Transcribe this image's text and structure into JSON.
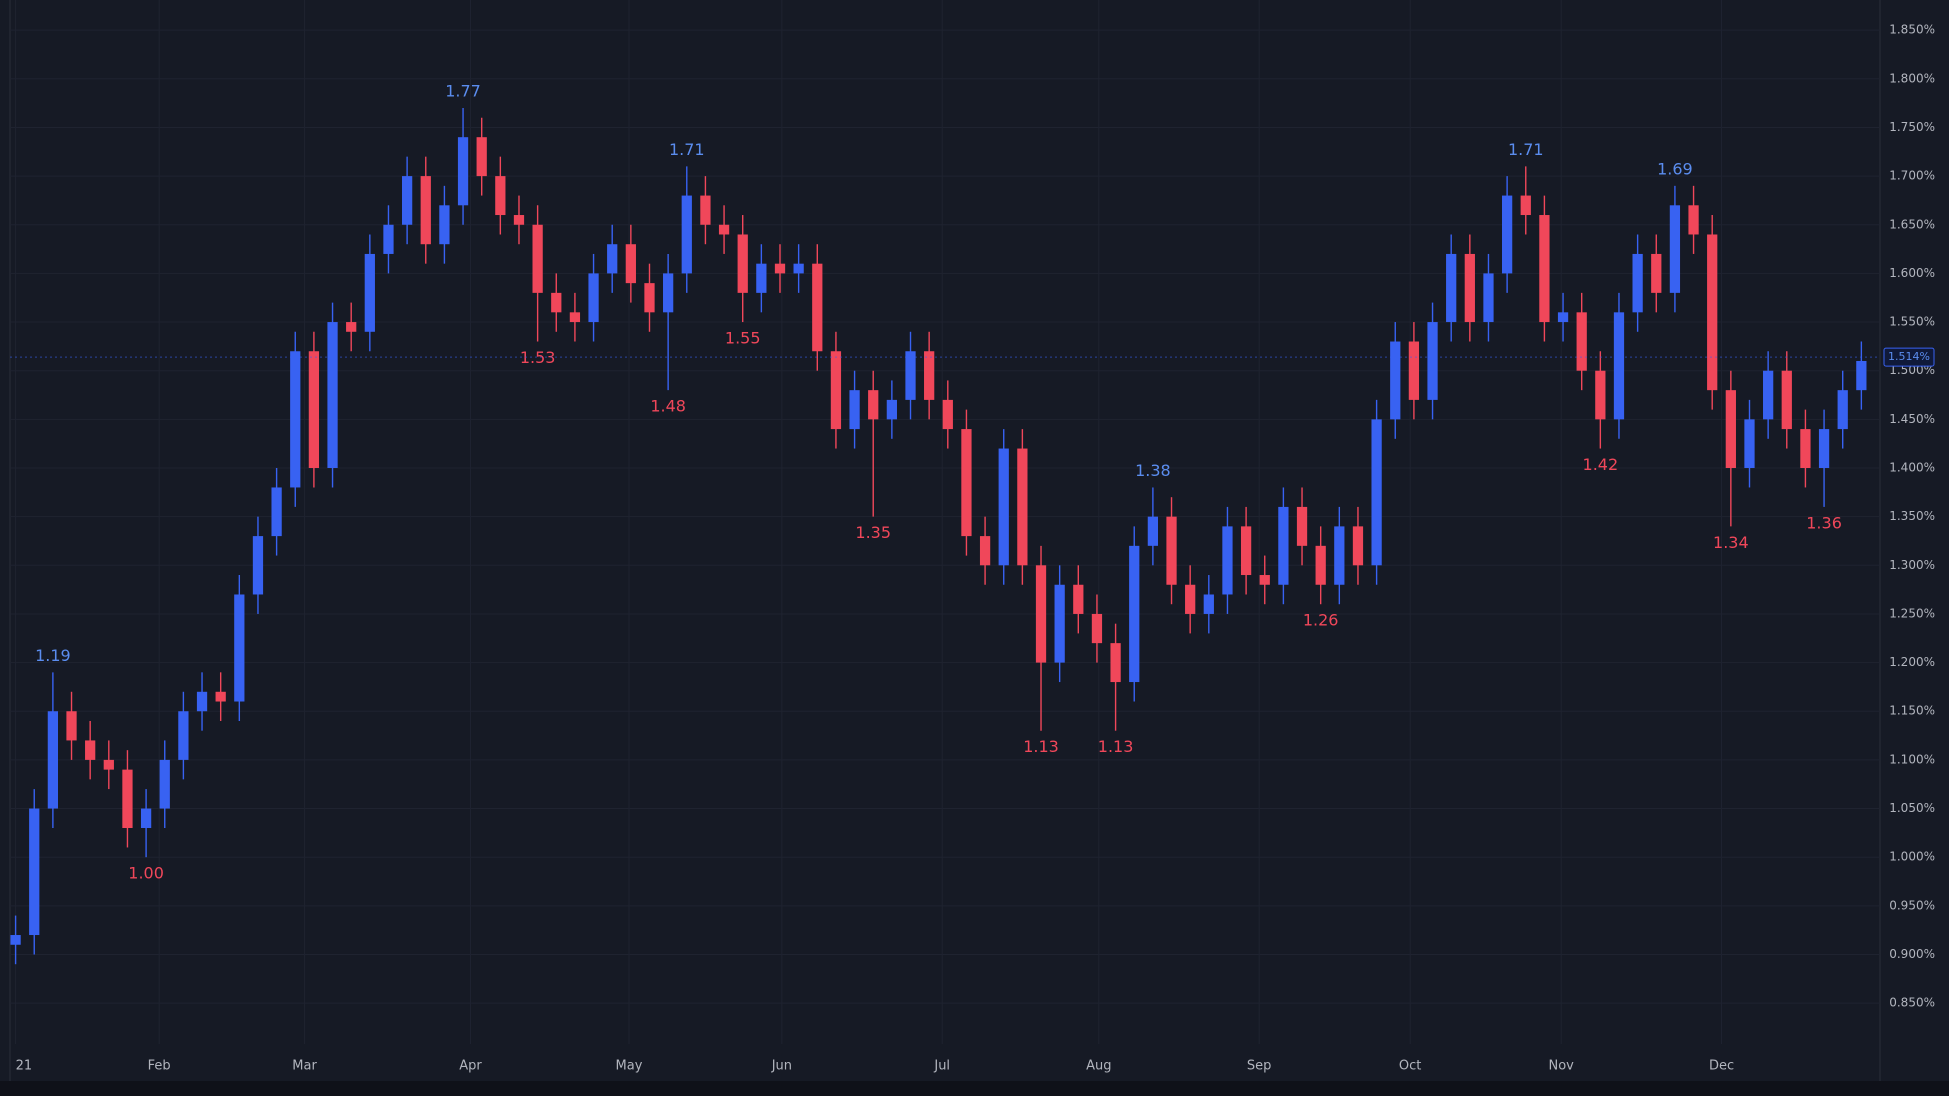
{
  "chart_data": {
    "type": "candlestick",
    "colors": {
      "up": "#3862f2",
      "down": "#f0475a"
    },
    "grid": true,
    "x": [
      0,
      1,
      2,
      3,
      4,
      5,
      6,
      7,
      8,
      9,
      10,
      11,
      12,
      13,
      14,
      15,
      16,
      17,
      18,
      19,
      20,
      21,
      22,
      23,
      24,
      25,
      26,
      27,
      28,
      29,
      30,
      31,
      32,
      33,
      34,
      35,
      36,
      37,
      38,
      39,
      40,
      41,
      42,
      43,
      44,
      45,
      46,
      47,
      48,
      49,
      50,
      51,
      52,
      53,
      54,
      55,
      56,
      57,
      58,
      59,
      60,
      61,
      62,
      63,
      64,
      65,
      66,
      67,
      68,
      69,
      70,
      71,
      72,
      73,
      74,
      75,
      76,
      77,
      78,
      79,
      80,
      81,
      82,
      83,
      84,
      85,
      86,
      87,
      88,
      89,
      90,
      91,
      92,
      93,
      94,
      95,
      96,
      97,
      98,
      99
    ],
    "open": [
      0.91,
      0.92,
      1.05,
      1.15,
      1.12,
      1.1,
      1.09,
      1.03,
      1.05,
      1.1,
      1.15,
      1.17,
      1.16,
      1.27,
      1.33,
      1.38,
      1.52,
      1.4,
      1.55,
      1.54,
      1.62,
      1.65,
      1.7,
      1.63,
      1.67,
      1.74,
      1.7,
      1.66,
      1.65,
      1.58,
      1.56,
      1.55,
      1.6,
      1.63,
      1.59,
      1.56,
      1.6,
      1.68,
      1.65,
      1.64,
      1.58,
      1.61,
      1.6,
      1.61,
      1.52,
      1.44,
      1.48,
      1.45,
      1.47,
      1.52,
      1.47,
      1.44,
      1.33,
      1.3,
      1.42,
      1.3,
      1.2,
      1.28,
      1.25,
      1.22,
      1.18,
      1.32,
      1.35,
      1.28,
      1.25,
      1.27,
      1.34,
      1.29,
      1.28,
      1.36,
      1.32,
      1.28,
      1.34,
      1.3,
      1.45,
      1.53,
      1.47,
      1.55,
      1.62,
      1.55,
      1.6,
      1.68,
      1.66,
      1.55,
      1.56,
      1.5,
      1.45,
      1.56,
      1.62,
      1.58,
      1.67,
      1.64,
      1.48,
      1.4,
      1.45,
      1.5,
      1.44,
      1.4,
      1.44,
      1.48
    ],
    "high": [
      0.94,
      1.07,
      1.19,
      1.17,
      1.14,
      1.12,
      1.11,
      1.07,
      1.12,
      1.17,
      1.19,
      1.19,
      1.29,
      1.35,
      1.4,
      1.54,
      1.54,
      1.57,
      1.57,
      1.64,
      1.67,
      1.72,
      1.72,
      1.69,
      1.77,
      1.76,
      1.72,
      1.68,
      1.67,
      1.6,
      1.58,
      1.62,
      1.65,
      1.65,
      1.61,
      1.62,
      1.71,
      1.7,
      1.67,
      1.66,
      1.63,
      1.63,
      1.63,
      1.63,
      1.54,
      1.5,
      1.5,
      1.49,
      1.54,
      1.54,
      1.49,
      1.46,
      1.35,
      1.44,
      1.44,
      1.32,
      1.3,
      1.3,
      1.27,
      1.24,
      1.34,
      1.38,
      1.37,
      1.3,
      1.29,
      1.36,
      1.36,
      1.31,
      1.38,
      1.38,
      1.34,
      1.36,
      1.36,
      1.47,
      1.55,
      1.55,
      1.57,
      1.64,
      1.64,
      1.62,
      1.7,
      1.71,
      1.68,
      1.58,
      1.58,
      1.52,
      1.58,
      1.64,
      1.64,
      1.69,
      1.69,
      1.66,
      1.5,
      1.47,
      1.52,
      1.52,
      1.46,
      1.46,
      1.5,
      1.53
    ],
    "low": [
      0.89,
      0.9,
      1.03,
      1.1,
      1.08,
      1.07,
      1.01,
      1.0,
      1.03,
      1.08,
      1.13,
      1.14,
      1.14,
      1.25,
      1.31,
      1.36,
      1.38,
      1.38,
      1.52,
      1.52,
      1.6,
      1.63,
      1.61,
      1.61,
      1.65,
      1.68,
      1.64,
      1.63,
      1.53,
      1.54,
      1.53,
      1.53,
      1.58,
      1.57,
      1.54,
      1.48,
      1.58,
      1.63,
      1.62,
      1.55,
      1.56,
      1.58,
      1.58,
      1.5,
      1.42,
      1.42,
      1.35,
      1.43,
      1.45,
      1.45,
      1.42,
      1.31,
      1.28,
      1.28,
      1.28,
      1.13,
      1.18,
      1.23,
      1.2,
      1.13,
      1.16,
      1.3,
      1.26,
      1.23,
      1.23,
      1.25,
      1.27,
      1.26,
      1.26,
      1.3,
      1.26,
      1.26,
      1.28,
      1.28,
      1.43,
      1.45,
      1.45,
      1.53,
      1.53,
      1.53,
      1.58,
      1.64,
      1.53,
      1.53,
      1.48,
      1.42,
      1.43,
      1.54,
      1.56,
      1.56,
      1.62,
      1.46,
      1.34,
      1.38,
      1.43,
      1.42,
      1.38,
      1.36,
      1.42,
      1.46
    ],
    "close": [
      0.92,
      1.05,
      1.15,
      1.12,
      1.1,
      1.09,
      1.03,
      1.05,
      1.1,
      1.15,
      1.17,
      1.16,
      1.27,
      1.33,
      1.38,
      1.52,
      1.4,
      1.55,
      1.54,
      1.62,
      1.65,
      1.7,
      1.63,
      1.67,
      1.74,
      1.7,
      1.66,
      1.65,
      1.58,
      1.56,
      1.55,
      1.6,
      1.63,
      1.59,
      1.56,
      1.6,
      1.68,
      1.65,
      1.64,
      1.58,
      1.61,
      1.6,
      1.61,
      1.52,
      1.44,
      1.48,
      1.45,
      1.47,
      1.52,
      1.47,
      1.44,
      1.33,
      1.3,
      1.42,
      1.3,
      1.2,
      1.28,
      1.25,
      1.22,
      1.18,
      1.32,
      1.35,
      1.28,
      1.25,
      1.27,
      1.34,
      1.29,
      1.28,
      1.36,
      1.32,
      1.28,
      1.34,
      1.3,
      1.45,
      1.53,
      1.47,
      1.55,
      1.62,
      1.55,
      1.6,
      1.68,
      1.66,
      1.55,
      1.56,
      1.5,
      1.45,
      1.56,
      1.62,
      1.58,
      1.67,
      1.64,
      1.48,
      1.4,
      1.45,
      1.5,
      1.44,
      1.4,
      1.44,
      1.48,
      1.51
    ],
    "xlim": [
      -0.3,
      100
    ],
    "xticks": [
      {
        "value": 0,
        "label": "21"
      },
      {
        "value": 7.7,
        "label": "Feb"
      },
      {
        "value": 15.5,
        "label": "Mar"
      },
      {
        "value": 24.4,
        "label": "Apr"
      },
      {
        "value": 32.9,
        "label": "May"
      },
      {
        "value": 41.1,
        "label": "Jun"
      },
      {
        "value": 49.7,
        "label": "Jul"
      },
      {
        "value": 58.1,
        "label": "Aug"
      },
      {
        "value": 66.7,
        "label": "Sep"
      },
      {
        "value": 74.8,
        "label": "Oct"
      },
      {
        "value": 82.9,
        "label": "Nov"
      },
      {
        "value": 91.5,
        "label": "Dec"
      }
    ],
    "ylim": [
      0.808,
      1.881
    ],
    "yticks": [
      {
        "value": 0.85,
        "label": "0.850%"
      },
      {
        "value": 0.9,
        "label": "0.900%"
      },
      {
        "value": 0.95,
        "label": "0.950%"
      },
      {
        "value": 1.0,
        "label": "1.000%"
      },
      {
        "value": 1.05,
        "label": "1.050%"
      },
      {
        "value": 1.1,
        "label": "1.100%"
      },
      {
        "value": 1.15,
        "label": "1.150%"
      },
      {
        "value": 1.2,
        "label": "1.200%"
      },
      {
        "value": 1.25,
        "label": "1.250%"
      },
      {
        "value": 1.3,
        "label": "1.300%"
      },
      {
        "value": 1.35,
        "label": "1.350%"
      },
      {
        "value": 1.4,
        "label": "1.400%"
      },
      {
        "value": 1.45,
        "label": "1.450%"
      },
      {
        "value": 1.5,
        "label": "1.500%"
      },
      {
        "value": 1.55,
        "label": "1.550%"
      },
      {
        "value": 1.6,
        "label": "1.600%"
      },
      {
        "value": 1.65,
        "label": "1.650%"
      },
      {
        "value": 1.7,
        "label": "1.700%"
      },
      {
        "value": 1.75,
        "label": "1.750%"
      },
      {
        "value": 1.8,
        "label": "1.800%"
      },
      {
        "value": 1.85,
        "label": "1.850%"
      }
    ],
    "high_labels": [
      {
        "x": 2,
        "value": 1.19,
        "label": "1.19"
      },
      {
        "x": 24,
        "value": 1.77,
        "label": "1.77"
      },
      {
        "x": 36,
        "value": 1.71,
        "label": "1.71"
      },
      {
        "x": 61,
        "value": 1.38,
        "label": "1.38"
      },
      {
        "x": 81,
        "value": 1.71,
        "label": "1.71"
      },
      {
        "x": 89,
        "value": 1.69,
        "label": "1.69"
      }
    ],
    "low_labels": [
      {
        "x": 7,
        "value": 1.0,
        "label": "1.00"
      },
      {
        "x": 28,
        "value": 1.53,
        "label": "1.53"
      },
      {
        "x": 35,
        "value": 1.48,
        "label": "1.48"
      },
      {
        "x": 39,
        "value": 1.55,
        "label": "1.55"
      },
      {
        "x": 46,
        "value": 1.35,
        "label": "1.35"
      },
      {
        "x": 55,
        "value": 1.13,
        "label": "1.13"
      },
      {
        "x": 59,
        "value": 1.13,
        "label": "1.13"
      },
      {
        "x": 70,
        "value": 1.26,
        "label": "1.26"
      },
      {
        "x": 85,
        "value": 1.42,
        "label": "1.42"
      },
      {
        "x": 92,
        "value": 1.34,
        "label": "1.34"
      },
      {
        "x": 97,
        "value": 1.36,
        "label": "1.36"
      }
    ],
    "last_price": {
      "value": 1.514,
      "label": "1.514%"
    }
  }
}
